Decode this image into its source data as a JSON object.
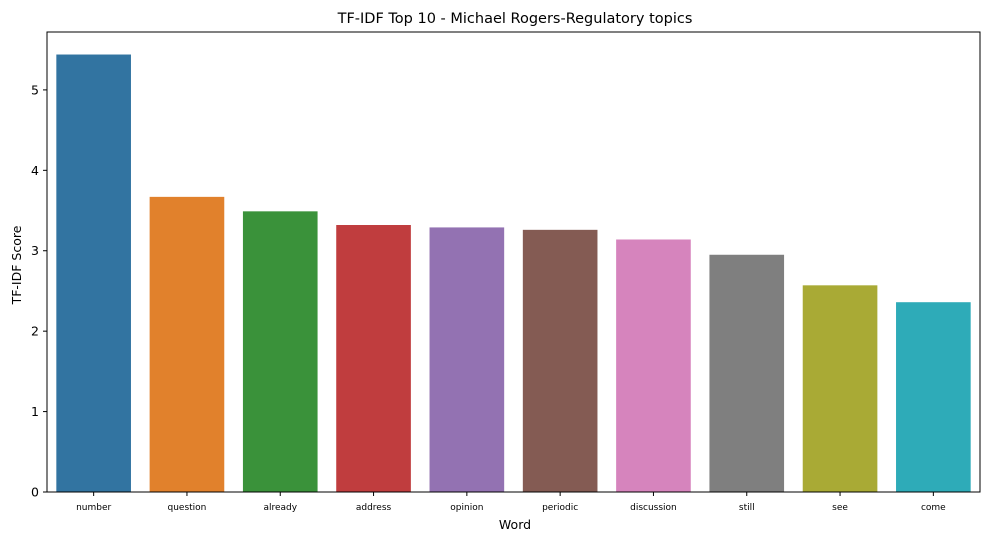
{
  "chart_data": {
    "type": "bar",
    "title": "TF-IDF Top 10 - Michael Rogers-Regulatory topics",
    "xlabel": "Word",
    "ylabel": "TF-IDF Score",
    "categories": [
      "number",
      "question",
      "already",
      "address",
      "opinion",
      "periodic",
      "discussion",
      "still",
      "see",
      "come"
    ],
    "values": [
      5.44,
      3.67,
      3.49,
      3.32,
      3.29,
      3.26,
      3.14,
      2.95,
      2.57,
      2.36
    ],
    "colors": [
      "#3274a1",
      "#e1812c",
      "#3a923a",
      "#c03d3e",
      "#9372b2",
      "#845b53",
      "#d684bd",
      "#7f7f7f",
      "#a9aa35",
      "#2eabb8"
    ],
    "ylim": [
      0,
      5.72
    ],
    "yticks": [
      0,
      1,
      2,
      3,
      4,
      5
    ],
    "grid": false,
    "legend": "none"
  }
}
